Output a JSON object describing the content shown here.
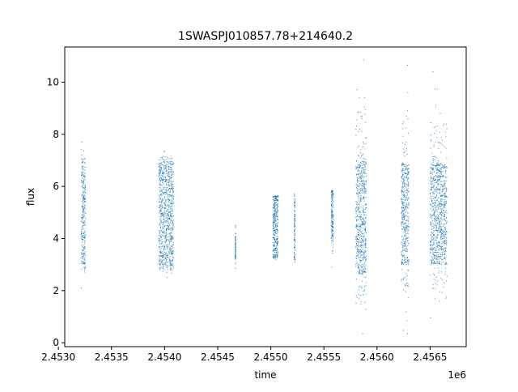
{
  "chart_data": {
    "type": "scatter",
    "title": "1SWASPJ010857.78+214640.2",
    "xlabel": "time",
    "ylabel": "flux",
    "x_offset_label": "1e6",
    "xlim": [
      2453060,
      2456840
    ],
    "ylim": [
      -0.15,
      11.35
    ],
    "x_ticks": [
      2453000,
      2453500,
      2454000,
      2454500,
      2455000,
      2455500,
      2456000,
      2456500
    ],
    "x_tick_labels": [
      "2.4530",
      "2.4535",
      "2.4540",
      "2.4545",
      "2.4550",
      "2.4555",
      "2.4560",
      "2.4565"
    ],
    "y_ticks": [
      0,
      2,
      4,
      6,
      8,
      10
    ],
    "y_tick_labels": [
      "0",
      "2",
      "4",
      "6",
      "8",
      "10"
    ],
    "grid": false,
    "marker_color": "#1f77b4",
    "series": [
      {
        "observing_seasons": [
          {
            "t_start": 2453215,
            "t_end": 2453255,
            "flux_low": 3.0,
            "flux_high": 6.8,
            "flux_max": 7.7,
            "flux_min": 2.1
          },
          {
            "t_start": 2453945,
            "t_end": 2454085,
            "flux_low": 3.0,
            "flux_high": 6.7,
            "flux_max": 7.35,
            "flux_min": 2.5
          },
          {
            "t_start": 2454665,
            "t_end": 2454670,
            "flux_low": 3.2,
            "flux_high": 4.1,
            "flux_max": 4.5,
            "flux_min": 2.85
          },
          {
            "t_start": 2455020,
            "t_end": 2455070,
            "flux_low": 3.3,
            "flux_high": 5.6,
            "flux_max": 5.65,
            "flux_min": 3.2
          },
          {
            "t_start": 2455220,
            "t_end": 2455230,
            "flux_low": 3.2,
            "flux_high": 5.4,
            "flux_max": 5.7,
            "flux_min": 3.1
          },
          {
            "t_start": 2455570,
            "t_end": 2455590,
            "flux_low": 4.0,
            "flux_high": 5.8,
            "flux_max": 5.85,
            "flux_min": 2.9
          },
          {
            "t_start": 2455800,
            "t_end": 2455900,
            "flux_low": 2.6,
            "flux_high": 7.0,
            "flux_max": 10.85,
            "flux_min": 0.35
          },
          {
            "t_start": 2456230,
            "t_end": 2456300,
            "flux_low": 3.0,
            "flux_high": 6.9,
            "flux_max": 10.65,
            "flux_min": 0.35
          },
          {
            "t_start": 2456500,
            "t_end": 2456660,
            "flux_low": 3.0,
            "flux_high": 6.9,
            "flux_max": 10.4,
            "flux_min": 0.95
          }
        ]
      }
    ]
  }
}
